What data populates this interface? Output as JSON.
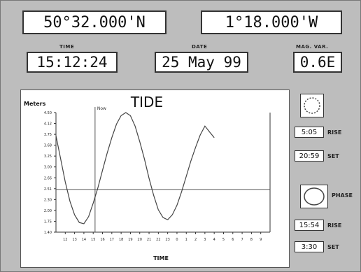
{
  "position": {
    "lat": "50°32.000'N",
    "lon": "1°18.000'W"
  },
  "time": {
    "label": "TIME",
    "value": "15:12:24"
  },
  "date": {
    "label": "DATE",
    "value": "25 May 99"
  },
  "magvar": {
    "label": "MAG. VAR.",
    "value": "0.6E"
  },
  "sun": {
    "icon": "sun-icon",
    "rise_time": "5:05",
    "rise_label": "RISE",
    "set_time": "20:59",
    "set_label": "SET"
  },
  "moon": {
    "icon": "full-moon-icon",
    "phase_label": "PHASE",
    "rise_time": "15:54",
    "rise_label": "RISE",
    "set_time": "3:30",
    "set_label": "SET"
  },
  "chart_data": {
    "type": "line",
    "title": "TIDE",
    "ylabel": "Meters",
    "xlabel": "TIME",
    "marker_label": "Now",
    "marker_x": 15.2,
    "reference_y": 2.5,
    "ylim": [
      1.4,
      4.5
    ],
    "xlim": [
      11,
      34
    ],
    "yticks": [
      "4.50",
      "4.12",
      "3.75",
      "3.68",
      "3.25",
      "3.00",
      "2.66",
      "2.51",
      "2.30",
      "2.00",
      "1.75",
      "1.40"
    ],
    "xtick_labels": [
      "12",
      "13",
      "14",
      "15",
      "16",
      "17",
      "18",
      "19",
      "20",
      "21",
      "22",
      "23",
      "0",
      "1",
      "2",
      "3",
      "4",
      "5",
      "6",
      "7",
      "8",
      "9"
    ],
    "series": [
      {
        "values": [
          [
            11.0,
            3.9
          ],
          [
            11.5,
            3.3
          ],
          [
            12.0,
            2.7
          ],
          [
            12.5,
            2.2
          ],
          [
            13.0,
            1.85
          ],
          [
            13.5,
            1.65
          ],
          [
            14.0,
            1.62
          ],
          [
            14.5,
            1.8
          ],
          [
            15.0,
            2.15
          ],
          [
            15.5,
            2.55
          ],
          [
            16.0,
            3.0
          ],
          [
            16.5,
            3.45
          ],
          [
            17.0,
            3.85
          ],
          [
            17.5,
            4.2
          ],
          [
            18.0,
            4.42
          ],
          [
            18.5,
            4.5
          ],
          [
            19.0,
            4.42
          ],
          [
            19.5,
            4.15
          ],
          [
            20.0,
            3.75
          ],
          [
            20.5,
            3.3
          ],
          [
            21.0,
            2.8
          ],
          [
            21.5,
            2.35
          ],
          [
            22.0,
            1.98
          ],
          [
            22.5,
            1.78
          ],
          [
            23.0,
            1.72
          ],
          [
            23.5,
            1.85
          ],
          [
            24.0,
            2.1
          ],
          [
            24.5,
            2.45
          ],
          [
            25.0,
            2.85
          ],
          [
            25.5,
            3.25
          ],
          [
            26.0,
            3.6
          ],
          [
            26.5,
            3.92
          ],
          [
            27.0,
            4.15
          ],
          [
            27.5,
            4.0
          ],
          [
            28.0,
            3.85
          ]
        ]
      }
    ]
  }
}
